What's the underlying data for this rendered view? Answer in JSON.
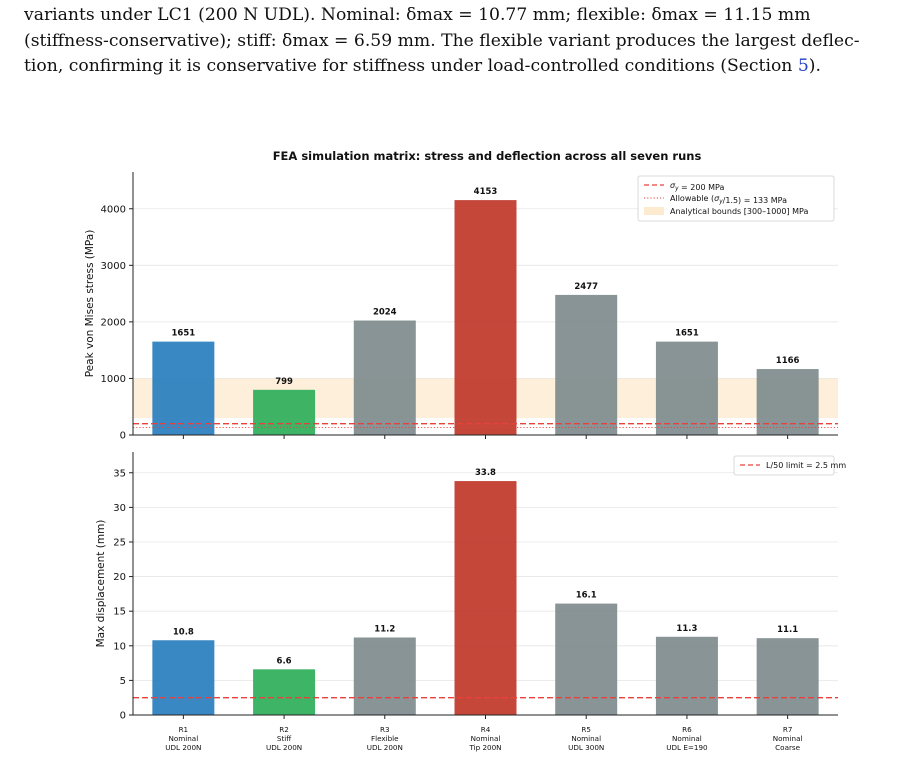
{
  "paragraph": {
    "line1": "variants under LC1 (200 N UDL). Nominal:  δmax  =  10.77 mm;  flexible:  δmax  =  11.15 mm",
    "line2": "(stiffness-conservative); stiff: δmax = 6.59 mm. The flexible variant produces the largest deflec-",
    "line3_pre": "tion, confirming it is conservative for stiffness under load-controlled conditions (Section ",
    "section_ref": "5",
    "line3_post": ")."
  },
  "figure": {
    "title": "FEA simulation matrix: stress and deflection across all seven runs"
  },
  "chart_data": [
    {
      "type": "bar",
      "title": "FEA simulation matrix: stress and deflection across all seven runs",
      "ylabel": "Peak von Mises stress (MPa)",
      "xlabel": "",
      "ylim": [
        0,
        4650
      ],
      "yticks": [
        0,
        1000,
        2000,
        3000,
        4000
      ],
      "grid": "horizontal",
      "legend_position": "top-right",
      "categories": [
        "R1",
        "R2",
        "R3",
        "R4",
        "R5",
        "R6",
        "R7"
      ],
      "values": [
        1651,
        799,
        2024,
        4153,
        2477,
        1651,
        1166
      ],
      "value_labels": [
        "1651",
        "799",
        "2024",
        "4153",
        "2477",
        "1651",
        "1166"
      ],
      "bar_colors": [
        "#2a7fbe",
        "#2fae5a",
        "#7f8c8d",
        "#c0392b",
        "#7f8c8d",
        "#7f8c8d",
        "#7f8c8d"
      ],
      "reference_lines": [
        {
          "label": "σy = 200 MPa",
          "value": 200,
          "style": "dashed",
          "color": "#e8403a"
        },
        {
          "label": "Allowable (σy/1.5) = 133 MPa",
          "value": 133,
          "style": "dotted",
          "color": "#e8403a"
        }
      ],
      "bands": [
        {
          "label": "Analytical bounds [300–1000] MPa",
          "from": 300,
          "to": 1000,
          "color": "#fdebd0"
        }
      ]
    },
    {
      "type": "bar",
      "ylabel": "Max displacement (mm)",
      "xlabel": "",
      "ylim": [
        0,
        38
      ],
      "yticks": [
        0,
        5,
        10,
        15,
        20,
        25,
        30,
        35
      ],
      "grid": "horizontal",
      "legend_position": "top-right",
      "categories": [
        "R1",
        "R2",
        "R3",
        "R4",
        "R5",
        "R6",
        "R7"
      ],
      "category_lines": [
        [
          "R1",
          "Nominal",
          "UDL 200N"
        ],
        [
          "R2",
          "Stiff",
          "UDL 200N"
        ],
        [
          "R3",
          "Flexible",
          "UDL 200N"
        ],
        [
          "R4",
          "Nominal",
          "Tip 200N"
        ],
        [
          "R5",
          "Nominal",
          "UDL 300N"
        ],
        [
          "R6",
          "Nominal",
          "UDL E=190"
        ],
        [
          "R7",
          "Nominal",
          "Coarse"
        ]
      ],
      "values": [
        10.8,
        6.6,
        11.2,
        33.8,
        16.1,
        11.3,
        11.1
      ],
      "value_labels": [
        "10.8",
        "6.6",
        "11.2",
        "33.8",
        "16.1",
        "11.3",
        "11.1"
      ],
      "bar_colors": [
        "#2a7fbe",
        "#2fae5a",
        "#7f8c8d",
        "#c0392b",
        "#7f8c8d",
        "#7f8c8d",
        "#7f8c8d"
      ],
      "reference_lines": [
        {
          "label": "L/50 limit = 2.5 mm",
          "value": 2.5,
          "style": "dashed",
          "color": "#e8403a"
        }
      ]
    }
  ]
}
